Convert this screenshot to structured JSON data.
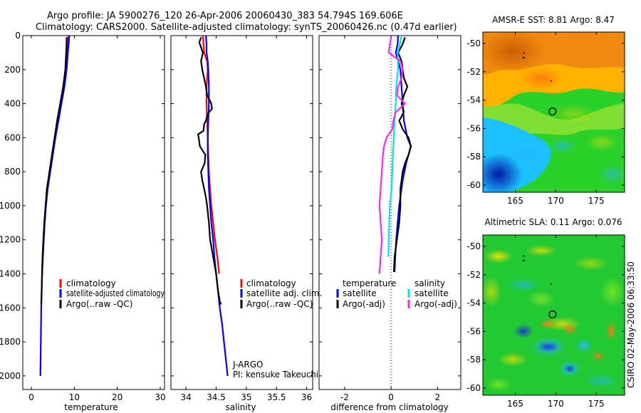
{
  "header": {
    "line1": "Argo profile: JA 5900276_120 26-Apr-2006 20060430_383 54.794S 169.606E",
    "line2": "Climatology: CARS2000. Satellite-adjusted climatology: synTS_20060426.nc (0.47d earlier)"
  },
  "side_label": "CSIRO 02-May-2006 06:33:50",
  "colors": {
    "red": "#ff0000",
    "blue": "#0000ff",
    "black": "#000000",
    "cyan": "#00e5e5",
    "magenta": "#ff22ff"
  },
  "chart_data": [
    {
      "type": "line",
      "id": "temperature",
      "xlabel": "temperature",
      "ylabel": "",
      "xlim": [
        -2,
        31
      ],
      "ylim": [
        2080,
        0
      ],
      "xticks": [
        0,
        10,
        20,
        30
      ],
      "yticks": [
        0,
        200,
        400,
        600,
        800,
        1000,
        1200,
        1400,
        1600,
        1800,
        2000
      ],
      "legend": [
        "climatology",
        "satellite-adjusted climatology",
        "Argo(..raw -QC)"
      ],
      "series": [
        {
          "name": "climatology",
          "color": "red",
          "points": [
            [
              8.6,
              0
            ],
            [
              8.5,
              50
            ],
            [
              8.3,
              100
            ],
            [
              8.1,
              200
            ],
            [
              7.6,
              300
            ],
            [
              6.9,
              400
            ],
            [
              6.2,
              500
            ],
            [
              5.5,
              600
            ],
            [
              4.9,
              700
            ],
            [
              4.3,
              800
            ],
            [
              3.7,
              900
            ],
            [
              3.3,
              1000
            ],
            [
              3.0,
              1100
            ],
            [
              2.8,
              1200
            ],
            [
              2.6,
              1300
            ],
            [
              2.5,
              1400
            ]
          ]
        },
        {
          "name": "satellite-adjusted climatology",
          "color": "blue",
          "points": [
            [
              8.8,
              0
            ],
            [
              8.7,
              50
            ],
            [
              8.5,
              100
            ],
            [
              8.2,
              200
            ],
            [
              7.7,
              300
            ],
            [
              7.0,
              400
            ],
            [
              6.3,
              500
            ],
            [
              5.6,
              600
            ],
            [
              5.0,
              700
            ],
            [
              4.4,
              800
            ],
            [
              3.8,
              900
            ],
            [
              3.4,
              1000
            ],
            [
              3.1,
              1100
            ],
            [
              2.9,
              1200
            ],
            [
              2.7,
              1300
            ],
            [
              2.5,
              1400
            ],
            [
              2.4,
              1500
            ],
            [
              2.3,
              1600
            ],
            [
              2.2,
              1800
            ],
            [
              2.1,
              2000
            ]
          ]
        },
        {
          "name": "Argo(..raw -QC)",
          "color": "black",
          "points": [
            [
              8.2,
              10
            ],
            [
              8.2,
              50
            ],
            [
              8.1,
              100
            ],
            [
              7.9,
              200
            ],
            [
              7.4,
              300
            ],
            [
              6.7,
              400
            ],
            [
              6.0,
              500
            ],
            [
              5.4,
              600
            ],
            [
              4.8,
              700
            ],
            [
              4.2,
              800
            ],
            [
              3.6,
              900
            ],
            [
              3.3,
              1000
            ],
            [
              3.0,
              1100
            ],
            [
              2.8,
              1200
            ],
            [
              2.6,
              1300
            ],
            [
              2.5,
              1400
            ],
            [
              2.4,
              1500
            ],
            [
              2.3,
              1580
            ]
          ]
        }
      ]
    },
    {
      "type": "line",
      "id": "salinity",
      "xlabel": "salinity",
      "ylabel": "",
      "xlim": [
        33.75,
        36.1
      ],
      "ylim": [
        2080,
        0
      ],
      "xticks": [
        34,
        34.5,
        35,
        35.5,
        36
      ],
      "legend": [
        "climatology",
        "satellite adj. clim.",
        "Argo(..raw -QC)"
      ],
      "annotation": [
        "J-ARGO",
        "PI: kensuke Takeuchi"
      ],
      "series": [
        {
          "name": "climatology",
          "color": "red",
          "points": [
            [
              34.28,
              0
            ],
            [
              34.3,
              100
            ],
            [
              34.35,
              150
            ],
            [
              34.36,
              200
            ],
            [
              34.35,
              250
            ],
            [
              34.34,
              300
            ],
            [
              34.34,
              400
            ],
            [
              34.35,
              500
            ],
            [
              34.36,
              600
            ],
            [
              34.37,
              700
            ],
            [
              34.38,
              800
            ],
            [
              34.4,
              900
            ],
            [
              34.42,
              1000
            ],
            [
              34.45,
              1100
            ],
            [
              34.48,
              1200
            ],
            [
              34.52,
              1300
            ],
            [
              34.55,
              1400
            ]
          ]
        },
        {
          "name": "satellite adj. clim.",
          "color": "blue",
          "points": [
            [
              34.33,
              0
            ],
            [
              34.34,
              50
            ],
            [
              34.34,
              100
            ],
            [
              34.36,
              150
            ],
            [
              34.37,
              200
            ],
            [
              34.38,
              300
            ],
            [
              34.38,
              400
            ],
            [
              34.37,
              500
            ],
            [
              34.36,
              600
            ],
            [
              34.36,
              700
            ],
            [
              34.37,
              800
            ],
            [
              34.38,
              900
            ],
            [
              34.4,
              1000
            ],
            [
              34.42,
              1100
            ],
            [
              34.45,
              1200
            ],
            [
              34.47,
              1300
            ],
            [
              34.5,
              1400
            ],
            [
              34.53,
              1500
            ],
            [
              34.56,
              1600
            ],
            [
              34.6,
              1700
            ],
            [
              34.63,
              1800
            ],
            [
              34.66,
              1900
            ],
            [
              34.69,
              2000
            ]
          ]
        },
        {
          "name": "Argo(..raw -QC)",
          "color": "black",
          "points": [
            [
              34.25,
              10
            ],
            [
              34.22,
              40
            ],
            [
              34.24,
              60
            ],
            [
              34.28,
              100
            ],
            [
              34.25,
              150
            ],
            [
              34.27,
              200
            ],
            [
              34.3,
              250
            ],
            [
              34.33,
              300
            ],
            [
              34.35,
              350
            ],
            [
              34.42,
              400
            ],
            [
              34.43,
              430
            ],
            [
              34.36,
              460
            ],
            [
              34.33,
              500
            ],
            [
              34.3,
              520
            ],
            [
              34.29,
              560
            ],
            [
              34.2,
              580
            ],
            [
              34.21,
              600
            ],
            [
              34.23,
              650
            ],
            [
              34.32,
              700
            ],
            [
              34.31,
              750
            ],
            [
              34.25,
              800
            ],
            [
              34.27,
              850
            ],
            [
              34.3,
              900
            ],
            [
              34.33,
              950
            ],
            [
              34.35,
              1000
            ],
            [
              34.38,
              1100
            ],
            [
              34.4,
              1200
            ],
            [
              34.45,
              1300
            ],
            [
              34.5,
              1400
            ],
            [
              34.53,
              1500
            ],
            [
              34.56,
              1560
            ],
            [
              34.58,
              1580
            ]
          ]
        }
      ]
    },
    {
      "type": "line",
      "id": "difference",
      "xlabel": "difference from climatology",
      "ylabel": "",
      "xlim": [
        -3.1,
        3.0
      ],
      "ylim": [
        2080,
        0
      ],
      "xticks": [
        -2,
        0,
        2
      ],
      "legend_groups": [
        {
          "title": "temperature",
          "entries": [
            "satellite",
            "Argo(-adj)"
          ]
        },
        {
          "title": "salinity",
          "entries": [
            "satellite",
            "Argo(-adj)"
          ]
        }
      ],
      "series": [
        {
          "name": "temperature satellite",
          "color": "blue",
          "points": [
            [
              0.3,
              0
            ],
            [
              0.28,
              50
            ],
            [
              0.2,
              100
            ],
            [
              0.3,
              150
            ],
            [
              0.4,
              200
            ],
            [
              0.45,
              300
            ],
            [
              0.5,
              400
            ],
            [
              0.55,
              500
            ],
            [
              0.7,
              600
            ],
            [
              0.85,
              650
            ],
            [
              0.65,
              750
            ],
            [
              0.5,
              850
            ],
            [
              0.35,
              1000
            ],
            [
              0.28,
              1100
            ],
            [
              0.22,
              1200
            ],
            [
              0.18,
              1300
            ],
            [
              0.15,
              1390
            ]
          ]
        },
        {
          "name": "temperature Argo(-adj)",
          "color": "black",
          "points": [
            [
              0.6,
              10
            ],
            [
              0.5,
              50
            ],
            [
              0.3,
              100
            ],
            [
              0.45,
              150
            ],
            [
              0.5,
              200
            ],
            [
              0.55,
              250
            ],
            [
              0.7,
              300
            ],
            [
              0.55,
              350
            ],
            [
              0.45,
              400
            ],
            [
              0.55,
              450
            ],
            [
              0.35,
              500
            ],
            [
              0.5,
              550
            ],
            [
              0.75,
              600
            ],
            [
              0.85,
              650
            ],
            [
              0.75,
              700
            ],
            [
              0.6,
              750
            ],
            [
              0.5,
              800
            ],
            [
              0.45,
              850
            ],
            [
              0.4,
              900
            ],
            [
              0.4,
              1000
            ],
            [
              0.35,
              1100
            ],
            [
              0.25,
              1200
            ],
            [
              0.15,
              1300
            ],
            [
              0.12,
              1390
            ]
          ]
        },
        {
          "name": "salinity satellite",
          "color": "cyan",
          "points": [
            [
              0.45,
              0
            ],
            [
              0.38,
              50
            ],
            [
              0.28,
              100
            ],
            [
              0.3,
              200
            ],
            [
              0.22,
              300
            ],
            [
              0.2,
              400
            ],
            [
              0.15,
              500
            ],
            [
              0.12,
              600
            ],
            [
              0.08,
              700
            ],
            [
              0.05,
              800
            ],
            [
              0.02,
              900
            ],
            [
              -0.05,
              1000
            ],
            [
              -0.08,
              1100
            ],
            [
              -0.1,
              1200
            ],
            [
              -0.12,
              1300
            ]
          ]
        },
        {
          "name": "salinity Argo(-adj)",
          "color": "magenta",
          "points": [
            [
              0.0,
              10
            ],
            [
              -0.05,
              50
            ],
            [
              -0.1,
              100
            ],
            [
              0.4,
              150
            ],
            [
              0.5,
              200
            ],
            [
              0.45,
              250
            ],
            [
              0.3,
              300
            ],
            [
              0.25,
              350
            ],
            [
              0.6,
              400
            ],
            [
              0.2,
              450
            ],
            [
              0.1,
              500
            ],
            [
              0.05,
              550
            ],
            [
              -0.2,
              600
            ],
            [
              -0.3,
              650
            ],
            [
              -0.35,
              700
            ],
            [
              -0.4,
              800
            ],
            [
              -0.45,
              900
            ],
            [
              -0.5,
              1000
            ],
            [
              -0.45,
              1100
            ],
            [
              -0.4,
              1200
            ],
            [
              -0.45,
              1300
            ],
            [
              -0.5,
              1400
            ]
          ]
        }
      ]
    },
    {
      "type": "heatmap",
      "id": "sst",
      "title": "AMSR-E SST: 8.81  Argo: 8.47",
      "xlim": [
        161,
        178.5
      ],
      "ylim": [
        -60.5,
        -49.2
      ],
      "xticks": [
        165,
        170,
        175
      ],
      "yticks": [
        -50,
        -52,
        -54,
        -56,
        -58,
        -60
      ],
      "marker": [
        169.6,
        -54.8
      ]
    },
    {
      "type": "heatmap",
      "id": "sla",
      "title": "Altimetric SLA: 0.11  Argo: 0.076",
      "xlim": [
        161,
        178.5
      ],
      "ylim": [
        -60.5,
        -49.2
      ],
      "xticks": [
        165,
        170,
        175
      ],
      "yticks": [
        -50,
        -52,
        -54,
        -56,
        -58,
        -60
      ],
      "marker": [
        169.6,
        -54.8
      ]
    }
  ]
}
